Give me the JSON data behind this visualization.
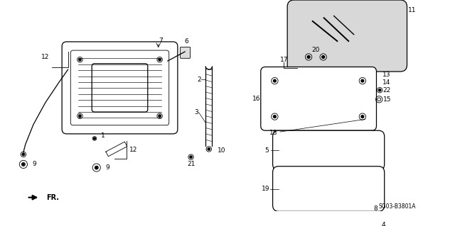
{
  "background_color": "#ffffff",
  "figure_width": 6.4,
  "figure_height": 3.19,
  "diagram_code": "SG03-B3801A",
  "fr_label": "FR.",
  "col": "black"
}
